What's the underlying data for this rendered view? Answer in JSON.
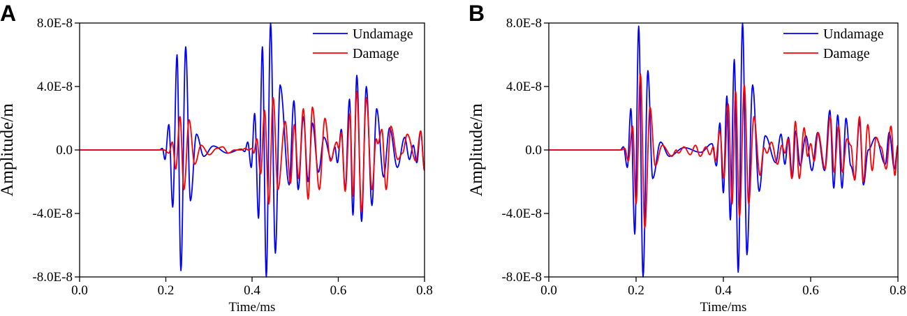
{
  "chart_data": [
    {
      "panel_label": "A",
      "type": "line",
      "xlabel": "Time/ms",
      "ylabel": "Amplitude/m",
      "xlim": [
        0,
        0.8
      ],
      "ylim": [
        -8e-08,
        8e-08
      ],
      "value_scale": 1e-08,
      "x_ticks": [
        "0.0",
        "0.2",
        "0.4",
        "0.6",
        "0.8"
      ],
      "x_tick_values": [
        0,
        0.2,
        0.4,
        0.6,
        0.8
      ],
      "y_ticks": [
        "8.0E-8",
        "4.0E-8",
        "0.0",
        "-4.0E-8",
        "-8.0E-8"
      ],
      "y_tick_values": [
        8,
        4,
        0,
        -4,
        -8
      ],
      "legend_position": "top-right",
      "series": [
        {
          "name": "Undamage",
          "color": "#0000ff",
          "t": [
            0.185,
            0.192,
            0.198,
            0.207,
            0.216,
            0.226,
            0.235,
            0.246,
            0.257,
            0.271,
            0.288,
            0.31,
            0.343,
            0.375,
            0.383,
            0.39,
            0.398,
            0.406,
            0.415,
            0.424,
            0.433,
            0.443,
            0.454,
            0.465,
            0.486,
            0.497,
            0.507,
            0.519,
            0.53,
            0.54,
            0.554,
            0.567,
            0.584,
            0.592,
            0.598,
            0.607,
            0.616,
            0.626,
            0.634,
            0.643,
            0.654,
            0.665,
            0.678,
            0.689,
            0.705,
            0.719,
            0.737,
            0.754,
            0.765,
            0.774,
            0.782,
            0.791,
            0.8
          ],
          "values": [
            0,
            0.1,
            -0.6,
            1.6,
            -3.6,
            6.0,
            -7.6,
            6.5,
            -3.2,
            1.0,
            -0.4,
            0.25,
            -0.2,
            0.05,
            -0.1,
            0.5,
            -1.1,
            2.3,
            -4.3,
            6.5,
            -8.0,
            8.0,
            -6.5,
            4.1,
            -2.2,
            3.1,
            -2.5,
            2.1,
            -2.0,
            1.7,
            -1.4,
            0.8,
            -0.6,
            0.2,
            -0.8,
            1.3,
            -2.5,
            3.2,
            -4.1,
            4.7,
            -4.5,
            4.0,
            -3.5,
            2.6,
            -1.7,
            1.4,
            -1.1,
            0.8,
            -0.6,
            0.3,
            -0.8,
            1.2,
            -1.3
          ]
        },
        {
          "name": "Damage",
          "color": "#ff0000",
          "t": [
            0.196,
            0.207,
            0.215,
            0.223,
            0.233,
            0.242,
            0.254,
            0.267,
            0.282,
            0.301,
            0.318,
            0.332,
            0.345,
            0.359,
            0.375,
            0.385,
            0.391,
            0.4,
            0.404,
            0.411,
            0.42,
            0.429,
            0.439,
            0.449,
            0.46,
            0.477,
            0.489,
            0.498,
            0.508,
            0.519,
            0.53,
            0.54,
            0.556,
            0.569,
            0.582,
            0.596,
            0.601,
            0.607,
            0.616,
            0.627,
            0.634,
            0.643,
            0.654,
            0.665,
            0.678,
            0.688,
            0.692,
            0.701,
            0.711,
            0.722,
            0.738,
            0.749,
            0.76,
            0.78,
            0.791,
            0.8
          ],
          "values": [
            0,
            -0.2,
            0.5,
            -1.2,
            2.1,
            -2.5,
            1.9,
            -0.9,
            0.3,
            -0.3,
            0.1,
            0.2,
            -0.2,
            0,
            0,
            0.1,
            0,
            0.1,
            -0.2,
            0.7,
            -1.5,
            2.5,
            -3.4,
            3.3,
            -2.5,
            1.8,
            -2.1,
            1.6,
            -1.8,
            2.6,
            -3.1,
            2.7,
            -2.5,
            2.0,
            -0.7,
            0.5,
            0.1,
            1.1,
            -2.6,
            2.3,
            -2.9,
            3.7,
            -3.9,
            3.3,
            -2.5,
            0.7,
            0.4,
            1.3,
            -2.5,
            1.5,
            -0.6,
            -0.2,
            1.0,
            -0.7,
            1.2,
            -1.3
          ]
        }
      ]
    },
    {
      "panel_label": "B",
      "type": "line",
      "xlabel": "Time/ms",
      "ylabel": "Amplitude/m",
      "xlim": [
        0,
        0.8
      ],
      "ylim": [
        -8e-08,
        8e-08
      ],
      "value_scale": 1e-08,
      "x_ticks": [
        "0.0",
        "0.2",
        "0.4",
        "0.6",
        "0.8"
      ],
      "x_tick_values": [
        0,
        0.2,
        0.4,
        0.6,
        0.8
      ],
      "y_ticks": [
        "8.0E-8",
        "4.0E-8",
        "0.0",
        "-4.0E-8",
        "-8.0E-8"
      ],
      "y_tick_values": [
        8,
        4,
        0,
        -4,
        -8
      ],
      "legend_position": "top-right",
      "series": [
        {
          "name": "Undamage",
          "color": "#0000ff",
          "t": [
            0.164,
            0.171,
            0.18,
            0.188,
            0.197,
            0.206,
            0.216,
            0.227,
            0.238,
            0.256,
            0.276,
            0.31,
            0.348,
            0.374,
            0.384,
            0.392,
            0.4,
            0.408,
            0.416,
            0.425,
            0.434,
            0.444,
            0.454,
            0.467,
            0.482,
            0.496,
            0.52,
            0.532,
            0.541,
            0.549,
            0.558,
            0.566,
            0.576,
            0.589,
            0.603,
            0.616,
            0.632,
            0.644,
            0.653,
            0.662,
            0.672,
            0.681,
            0.692,
            0.701,
            0.712,
            0.721,
            0.732,
            0.749,
            0.771,
            0.78,
            0.792,
            0.8
          ],
          "values": [
            0,
            0.2,
            -1.1,
            2.6,
            -5.3,
            7.8,
            -8.0,
            5.0,
            -1.8,
            0.5,
            -0.4,
            0.15,
            -0.15,
            0.4,
            -1.0,
            1.7,
            -2.7,
            3.4,
            -4.4,
            5.7,
            -7.7,
            8.0,
            -6.6,
            4.1,
            -2.6,
            0.9,
            -0.8,
            1.0,
            -0.9,
            0.8,
            -1.7,
            1.2,
            -1.0,
            0.9,
            -1.3,
            1.1,
            -1.3,
            2.5,
            -2.4,
            2.2,
            -2.4,
            2.0,
            -1.0,
            -1.8,
            1.8,
            -2.2,
            0,
            0.8,
            -0.9,
            1.1,
            -1.2,
            0.3
          ]
        },
        {
          "name": "Damage",
          "color": "#ff0000",
          "t": [
            0.166,
            0.174,
            0.182,
            0.192,
            0.2,
            0.21,
            0.22,
            0.232,
            0.244,
            0.26,
            0.282,
            0.292,
            0.297,
            0.31,
            0.324,
            0.336,
            0.347,
            0.36,
            0.369,
            0.377,
            0.382,
            0.392,
            0.401,
            0.411,
            0.42,
            0.428,
            0.437,
            0.448,
            0.458,
            0.47,
            0.484,
            0.493,
            0.5,
            0.51,
            0.524,
            0.534,
            0.541,
            0.548,
            0.557,
            0.565,
            0.574,
            0.585,
            0.593,
            0.6,
            0.608,
            0.617,
            0.633,
            0.645,
            0.654,
            0.664,
            0.673,
            0.683,
            0.692,
            0.701,
            0.712,
            0.721,
            0.731,
            0.741,
            0.75,
            0.761,
            0.773,
            0.784,
            0.793,
            0.8
          ],
          "values": [
            0,
            0.1,
            -0.7,
            1.5,
            -3.4,
            4.8,
            -4.9,
            2.7,
            -1.0,
            0.3,
            -0.4,
            0,
            -0.2,
            0.2,
            -0.3,
            0.3,
            -0.4,
            0.2,
            -0.3,
            0.2,
            -0.7,
            1.2,
            -1.8,
            2.9,
            -3.4,
            3.7,
            -4.2,
            4.1,
            -3.4,
            2.1,
            -1.6,
            0.15,
            -0.2,
            0.5,
            -0.9,
            0.3,
            -0.2,
            0.7,
            -1.8,
            1.8,
            -1.8,
            1.4,
            -0.4,
            0.4,
            -0.7,
            1.1,
            -1.2,
            2.1,
            -1.4,
            1.5,
            -1.4,
            0.7,
            0.3,
            -1.9,
            2.1,
            -2.0,
            1.6,
            -1.3,
            0.8,
            0.2,
            -1.2,
            1.5,
            -1.6,
            0.3
          ]
        }
      ]
    }
  ]
}
